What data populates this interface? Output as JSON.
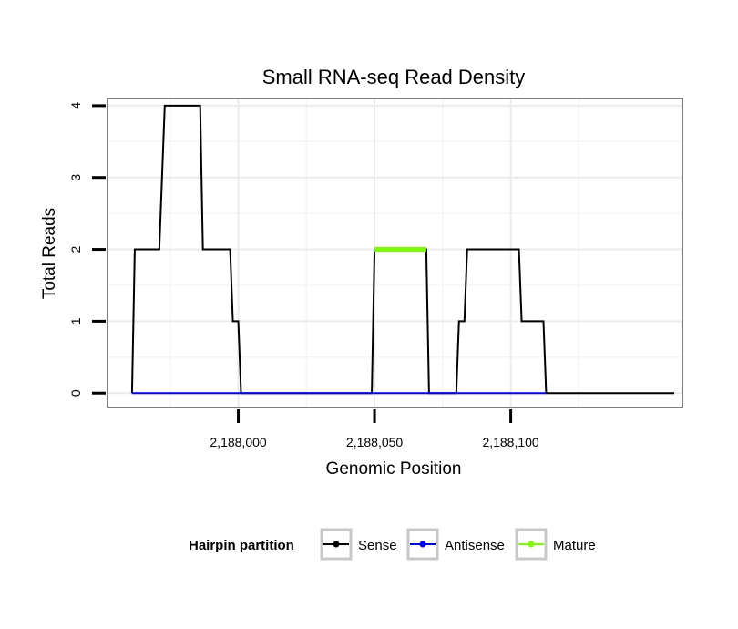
{
  "chart_data": {
    "type": "line",
    "title": "Small RNA-seq Read Density",
    "xlabel": "Genomic Position",
    "ylabel": "Total Reads",
    "xlim": [
      2187952,
      2188163
    ],
    "ylim": [
      -0.2,
      4.1
    ],
    "xticks": [
      2188000,
      2188050,
      2188100
    ],
    "xtick_labels": [
      "2,188,000",
      "2,188,050",
      "2,188,100"
    ],
    "yticks": [
      0,
      1,
      2,
      3,
      4
    ],
    "ytick_labels": [
      "0",
      "1",
      "2",
      "3",
      "4"
    ],
    "grid": true,
    "legend_position": "bottom",
    "legend_title": "Hairpin partition",
    "series": [
      {
        "name": "Sense",
        "color": "#000000",
        "points": [
          [
            2187961,
            0
          ],
          [
            2187962,
            2
          ],
          [
            2187971,
            2
          ],
          [
            2187973,
            4
          ],
          [
            2187986,
            4
          ],
          [
            2187987,
            2
          ],
          [
            2187997,
            2
          ],
          [
            2187998,
            1
          ],
          [
            2188000,
            1
          ],
          [
            2188001,
            0
          ],
          [
            2188049,
            0
          ],
          [
            2188050,
            2
          ],
          [
            2188069,
            2
          ],
          [
            2188070,
            0
          ],
          [
            2188080,
            0
          ],
          [
            2188081,
            1
          ],
          [
            2188083,
            1
          ],
          [
            2188084,
            2
          ],
          [
            2188103,
            2
          ],
          [
            2188104,
            1
          ],
          [
            2188112,
            1
          ],
          [
            2188113,
            0
          ],
          [
            2188160,
            0
          ]
        ]
      },
      {
        "name": "Antisense",
        "color": "#0000ff",
        "points": [
          [
            2187961,
            0
          ],
          [
            2188113,
            0
          ]
        ]
      },
      {
        "name": "Mature",
        "color": "#7cfc00",
        "points": [
          [
            2188050,
            2
          ],
          [
            2188069,
            2
          ]
        ]
      }
    ]
  }
}
